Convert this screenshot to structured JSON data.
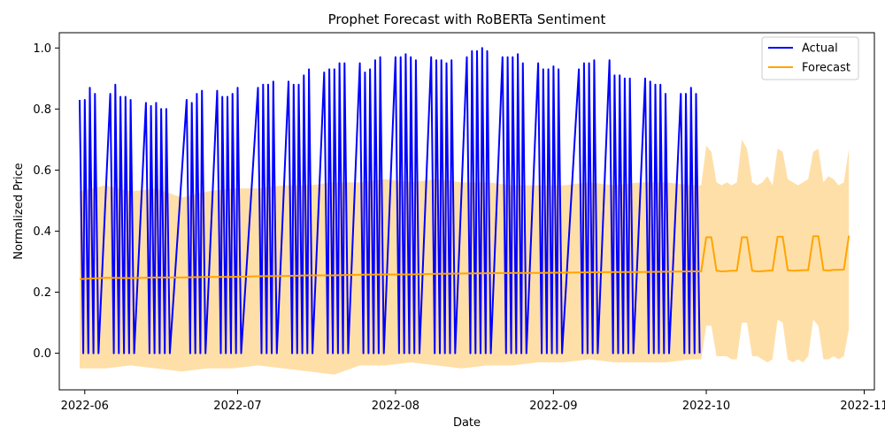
{
  "chart_data": {
    "type": "line",
    "title": "Prophet Forecast with RoBERTa Sentiment",
    "xlabel": "Date",
    "ylabel": "Normalized Price",
    "xlim": [
      "2022-05-27",
      "2022-11-03"
    ],
    "ylim": [
      -0.12,
      1.05
    ],
    "grid": false,
    "legend_position": "top-right",
    "x_ticks": [
      "2022-06-01",
      "2022-07-01",
      "2022-08-01",
      "2022-09-01",
      "2022-10-01",
      "2022-11-01"
    ],
    "x_tick_labels": [
      "2022-06",
      "2022-07",
      "2022-08",
      "2022-09",
      "2022-10",
      "2022-11"
    ],
    "y_ticks": [
      0.0,
      0.2,
      0.4,
      0.6,
      0.8,
      1.0
    ],
    "y_tick_labels": [
      "0.0",
      "0.2",
      "0.4",
      "0.6",
      "0.8",
      "1.0"
    ],
    "series": [
      {
        "name": "Actual",
        "color": "#0000ff",
        "weeks": [
          {
            "start": "2022-05-31",
            "highs": [
              0.83,
              0.83,
              0.87,
              0.85
            ]
          },
          {
            "start": "2022-06-06",
            "highs": [
              0.85,
              0.88,
              0.84,
              0.84,
              0.83
            ]
          },
          {
            "start": "2022-06-13",
            "highs": [
              0.82,
              0.81,
              0.82,
              0.8,
              0.8
            ]
          },
          {
            "start": "2022-06-21",
            "highs": [
              0.83,
              0.82,
              0.85,
              0.86
            ]
          },
          {
            "start": "2022-06-27",
            "highs": [
              0.86,
              0.84,
              0.84,
              0.85,
              0.87
            ]
          },
          {
            "start": "2022-07-05",
            "highs": [
              0.87,
              0.88,
              0.88,
              0.89
            ]
          },
          {
            "start": "2022-07-11",
            "highs": [
              0.89,
              0.88,
              0.88,
              0.91,
              0.93
            ]
          },
          {
            "start": "2022-07-18",
            "highs": [
              0.92,
              0.93,
              0.93,
              0.95,
              0.95
            ]
          },
          {
            "start": "2022-07-25",
            "highs": [
              0.95,
              0.92,
              0.93,
              0.96,
              0.97
            ]
          },
          {
            "start": "2022-08-01",
            "highs": [
              0.97,
              0.97,
              0.98,
              0.97,
              0.96
            ]
          },
          {
            "start": "2022-08-08",
            "highs": [
              0.97,
              0.96,
              0.96,
              0.95,
              0.96
            ]
          },
          {
            "start": "2022-08-15",
            "highs": [
              0.97,
              0.99,
              0.99,
              1.0,
              0.99
            ]
          },
          {
            "start": "2022-08-22",
            "highs": [
              0.97,
              0.97,
              0.97,
              0.98,
              0.95
            ]
          },
          {
            "start": "2022-08-29",
            "highs": [
              0.95,
              0.93,
              0.93,
              0.94,
              0.93
            ]
          },
          {
            "start": "2022-09-06",
            "highs": [
              0.93,
              0.95,
              0.95,
              0.96
            ]
          },
          {
            "start": "2022-09-12",
            "highs": [
              0.96,
              0.91,
              0.91,
              0.9,
              0.9
            ]
          },
          {
            "start": "2022-09-19",
            "highs": [
              0.9,
              0.89,
              0.88,
              0.88,
              0.85
            ]
          },
          {
            "start": "2022-09-26",
            "highs": [
              0.85,
              0.85,
              0.87,
              0.85
            ]
          }
        ]
      },
      {
        "name": "Forecast",
        "color": "#ffa500",
        "band_color": "#ffdfa8",
        "points": [
          [
            "2022-05-31",
            0.243,
            -0.05,
            0.53
          ],
          [
            "2022-06-05",
            0.247,
            -0.05,
            0.55
          ],
          [
            "2022-06-10",
            0.246,
            -0.04,
            0.53
          ],
          [
            "2022-06-15",
            0.248,
            -0.05,
            0.54
          ],
          [
            "2022-06-20",
            0.248,
            -0.06,
            0.51
          ],
          [
            "2022-06-25",
            0.25,
            -0.05,
            0.53
          ],
          [
            "2022-06-30",
            0.25,
            -0.05,
            0.54
          ],
          [
            "2022-07-05",
            0.252,
            -0.04,
            0.54
          ],
          [
            "2022-07-10",
            0.253,
            -0.05,
            0.55
          ],
          [
            "2022-07-15",
            0.255,
            -0.06,
            0.55
          ],
          [
            "2022-07-20",
            0.255,
            -0.07,
            0.56
          ],
          [
            "2022-07-25",
            0.257,
            -0.04,
            0.56
          ],
          [
            "2022-07-30",
            0.258,
            -0.04,
            0.57
          ],
          [
            "2022-08-04",
            0.258,
            -0.03,
            0.56
          ],
          [
            "2022-08-09",
            0.26,
            -0.04,
            0.57
          ],
          [
            "2022-08-14",
            0.261,
            -0.05,
            0.56
          ],
          [
            "2022-08-19",
            0.262,
            -0.04,
            0.56
          ],
          [
            "2022-08-24",
            0.263,
            -0.04,
            0.55
          ],
          [
            "2022-08-29",
            0.263,
            -0.03,
            0.55
          ],
          [
            "2022-09-03",
            0.264,
            -0.03,
            0.55
          ],
          [
            "2022-09-08",
            0.265,
            -0.02,
            0.56
          ],
          [
            "2022-09-13",
            0.266,
            -0.03,
            0.55
          ],
          [
            "2022-09-18",
            0.266,
            -0.03,
            0.56
          ],
          [
            "2022-09-23",
            0.267,
            -0.03,
            0.56
          ],
          [
            "2022-09-28",
            0.268,
            -0.02,
            0.55
          ],
          [
            "2022-09-30",
            0.268,
            -0.02,
            0.55
          ],
          [
            "2022-10-01",
            0.38,
            0.09,
            0.68
          ],
          [
            "2022-10-02",
            0.38,
            0.09,
            0.66
          ],
          [
            "2022-10-03",
            0.27,
            -0.01,
            0.56
          ],
          [
            "2022-10-04",
            0.268,
            -0.01,
            0.55
          ],
          [
            "2022-10-05",
            0.269,
            -0.01,
            0.56
          ],
          [
            "2022-10-06",
            0.27,
            -0.02,
            0.55
          ],
          [
            "2022-10-07",
            0.27,
            -0.02,
            0.56
          ],
          [
            "2022-10-08",
            0.38,
            0.1,
            0.7
          ],
          [
            "2022-10-09",
            0.38,
            0.1,
            0.67
          ],
          [
            "2022-10-10",
            0.27,
            -0.01,
            0.56
          ],
          [
            "2022-10-11",
            0.268,
            -0.01,
            0.55
          ],
          [
            "2022-10-12",
            0.269,
            -0.02,
            0.56
          ],
          [
            "2022-10-13",
            0.27,
            -0.03,
            0.58
          ],
          [
            "2022-10-14",
            0.271,
            -0.02,
            0.55
          ],
          [
            "2022-10-15",
            0.382,
            0.11,
            0.67
          ],
          [
            "2022-10-16",
            0.382,
            0.1,
            0.66
          ],
          [
            "2022-10-17",
            0.272,
            -0.02,
            0.57
          ],
          [
            "2022-10-18",
            0.27,
            -0.03,
            0.56
          ],
          [
            "2022-10-19",
            0.271,
            -0.02,
            0.55
          ],
          [
            "2022-10-20",
            0.272,
            -0.03,
            0.56
          ],
          [
            "2022-10-21",
            0.272,
            -0.01,
            0.57
          ],
          [
            "2022-10-22",
            0.383,
            0.11,
            0.66
          ],
          [
            "2022-10-23",
            0.383,
            0.09,
            0.67
          ],
          [
            "2022-10-24",
            0.272,
            -0.02,
            0.56
          ],
          [
            "2022-10-25",
            0.271,
            -0.02,
            0.58
          ],
          [
            "2022-10-26",
            0.273,
            -0.01,
            0.57
          ],
          [
            "2022-10-27",
            0.273,
            -0.02,
            0.55
          ],
          [
            "2022-10-28",
            0.274,
            -0.01,
            0.56
          ],
          [
            "2022-10-29",
            0.385,
            0.08,
            0.67
          ]
        ]
      }
    ]
  }
}
